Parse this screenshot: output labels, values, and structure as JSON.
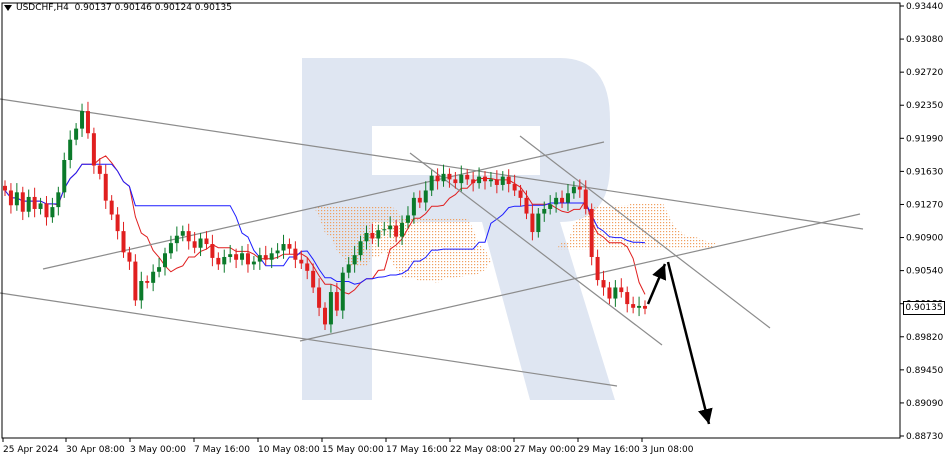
{
  "header": {
    "symbol": "USDCHF,H4",
    "ohlc": "0.90137 0.90146 0.90124 0.90135"
  },
  "last_price": "0.90135",
  "colors": {
    "bull": "#0b7a2a",
    "bear": "#e01f1f",
    "kijun": "#1c1cff",
    "tenkan": "#e01f1f",
    "cloud": "#f0a060",
    "channel": "#8c8c8c",
    "arrow": "#000000",
    "watermark": "#dfe6f2"
  },
  "chart_data": {
    "type": "candlestick",
    "y_ticks": [
      "0.93440",
      "0.93080",
      "0.92720",
      "0.92350",
      "0.91990",
      "0.91630",
      "0.91270",
      "0.90900",
      "0.90540",
      "0.90180",
      "0.89820",
      "0.89450",
      "0.89090",
      "0.88730"
    ],
    "x_ticks": [
      "25 Apr 2024",
      "30 Apr 08:00",
      "3 May 00:00",
      "7 May 16:00",
      "10 May 08:00",
      "15 May 00:00",
      "17 May 16:00",
      "22 May 08:00",
      "27 May 00:00",
      "29 May 16:00",
      "3 Jun 08:00"
    ],
    "ylim": [
      0.8873,
      0.9344
    ],
    "candles_close": [
      0.9141,
      0.9125,
      0.9139,
      0.9118,
      0.9134,
      0.9121,
      0.9127,
      0.9112,
      0.9123,
      0.9139,
      0.9174,
      0.9196,
      0.9208,
      0.9227,
      0.9203,
      0.9168,
      0.9159,
      0.913,
      0.9115,
      0.9097,
      0.9074,
      0.9064,
      0.9022,
      0.9043,
      0.9041,
      0.9053,
      0.9058,
      0.9073,
      0.9084,
      0.9092,
      0.9097,
      0.9086,
      0.9079,
      0.9089,
      0.9083,
      0.9068,
      0.9061,
      0.9069,
      0.9072,
      0.9066,
      0.9073,
      0.9061,
      0.9064,
      0.9071,
      0.9066,
      0.9073,
      0.9076,
      0.9083,
      0.9078,
      0.9066,
      0.9062,
      0.9054,
      0.9036,
      0.9014,
      0.8996,
      0.9031,
      0.9011,
      0.9052,
      0.9061,
      0.9071,
      0.9086,
      0.9095,
      0.9089,
      0.9098,
      0.9099,
      0.9103,
      0.9091,
      0.9106,
      0.9114,
      0.9133,
      0.9128,
      0.9141,
      0.9157,
      0.9151,
      0.9159,
      0.9153,
      0.9149,
      0.9158,
      0.9153,
      0.9149,
      0.9156,
      0.9151,
      0.9153,
      0.9147,
      0.9156,
      0.9148,
      0.9141,
      0.9133,
      0.9116,
      0.9096,
      0.9116,
      0.9121,
      0.9126,
      0.9133,
      0.9128,
      0.9138,
      0.9145,
      0.9142,
      0.9121,
      0.9069,
      0.9044,
      0.9036,
      0.9024,
      0.9036,
      0.9031,
      0.9018,
      0.9014,
      0.9016,
      0.9013
    ]
  }
}
